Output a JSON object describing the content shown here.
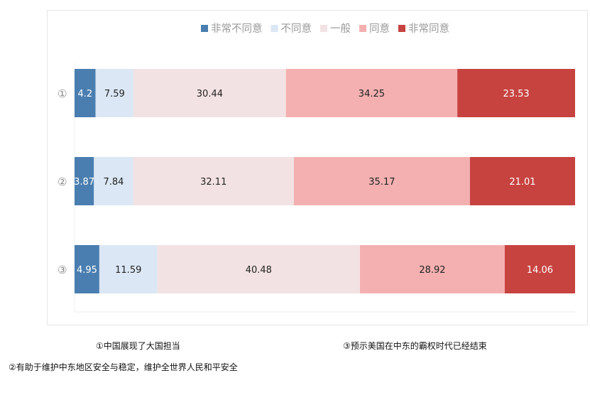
{
  "chart_data": {
    "type": "bar",
    "orientation": "horizontal",
    "stacked": true,
    "percent": true,
    "categories": [
      "①",
      "②",
      "③"
    ],
    "series": [
      {
        "name": "非常不同意",
        "color": "#4a7eb0",
        "values": [
          4.2,
          3.87,
          4.95
        ]
      },
      {
        "name": "不同意",
        "color": "#dbe7f4",
        "values": [
          7.59,
          7.84,
          11.59
        ]
      },
      {
        "name": "一般",
        "color": "#f3e2e3",
        "values": [
          30.44,
          32.11,
          40.48
        ]
      },
      {
        "name": "同意",
        "color": "#f4b0b0",
        "values": [
          34.25,
          35.17,
          28.92
        ]
      },
      {
        "name": "非常同意",
        "color": "#c74340",
        "values": [
          23.53,
          21.01,
          14.06
        ]
      }
    ],
    "data_labels": [
      [
        "4.2",
        "7.59",
        "30.44",
        "34.25",
        "23.53"
      ],
      [
        "3.87",
        "7.84",
        "32.11",
        "35.17",
        "21.01"
      ],
      [
        "4.95",
        "11.59",
        "40.48",
        "28.92",
        "14.06"
      ]
    ],
    "legend_position": "top-center",
    "grid": true,
    "title": "",
    "xlabel": "",
    "ylabel": ""
  },
  "notes": {
    "note1": "①中国展现了大国担当",
    "note2": "②有助于维护中东地区安全与稳定，维护全世界人民和平安全",
    "note3": "③预示美国在中东的霸权时代已经结束"
  }
}
